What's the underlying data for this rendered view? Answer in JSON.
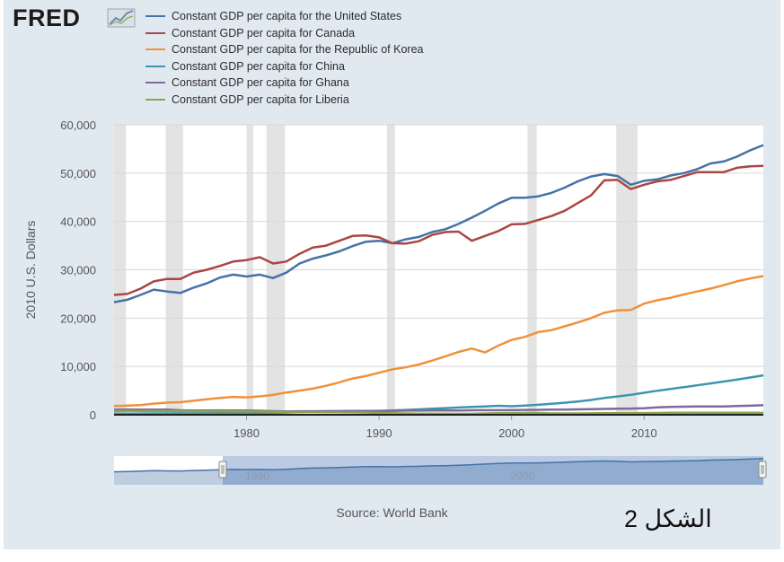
{
  "header": {
    "logo_text": "FRED",
    "logo_icon": "line-chart-icon"
  },
  "source_text": "Source: World Bank",
  "caption": "الشكل 2",
  "colors": {
    "panel_bg": "#e1e9f0",
    "plot_bg": "#ffffff",
    "recession_bar": "#e3e3e3",
    "navigator_fill": "#a3bad9",
    "navigator_line": "#4572a7"
  },
  "chart_data": {
    "type": "line",
    "title": "",
    "xlabel": "",
    "ylabel": "2010 U.S. Dollars",
    "xlim": [
      1970,
      2019
    ],
    "ylim": [
      0,
      60000
    ],
    "x_ticks": [
      "1980",
      "1990",
      "2000",
      "2010"
    ],
    "y_ticks": [
      "0",
      "10,000",
      "20,000",
      "30,000",
      "40,000",
      "50,000",
      "60,000"
    ],
    "grid": true,
    "legend_position": "top",
    "recessions": [
      [
        1970,
        1970.9
      ],
      [
        1973.9,
        1975.2
      ],
      [
        1980.0,
        1980.5
      ],
      [
        1981.5,
        1982.9
      ],
      [
        1990.6,
        1991.2
      ],
      [
        2001.2,
        2001.9
      ],
      [
        2007.9,
        2009.5
      ]
    ],
    "years": [
      1970,
      1971,
      1972,
      1973,
      1974,
      1975,
      1976,
      1977,
      1978,
      1979,
      1980,
      1981,
      1982,
      1983,
      1984,
      1985,
      1986,
      1987,
      1988,
      1989,
      1990,
      1991,
      1992,
      1993,
      1994,
      1995,
      1996,
      1997,
      1998,
      1999,
      2000,
      2001,
      2002,
      2003,
      2004,
      2005,
      2006,
      2007,
      2008,
      2009,
      2010,
      2011,
      2012,
      2013,
      2014,
      2015,
      2016,
      2017,
      2018,
      2019
    ],
    "series": [
      {
        "name": "Constant GDP per capita for the United States",
        "color": "#4572a7",
        "values": [
          23300,
          23800,
          24800,
          25900,
          25500,
          25200,
          26300,
          27200,
          28400,
          29000,
          28600,
          29000,
          28300,
          29400,
          31300,
          32300,
          33000,
          33800,
          34900,
          35800,
          36000,
          35500,
          36300,
          36800,
          37800,
          38400,
          39500,
          40800,
          42200,
          43700,
          44900,
          44900,
          45200,
          45900,
          47000,
          48300,
          49300,
          49800,
          49400,
          47600,
          48400,
          48700,
          49500,
          50000,
          50800,
          52000,
          52400,
          53400,
          54700,
          55800
        ]
      },
      {
        "name": "Constant GDP per capita for Canada",
        "color": "#aa4643",
        "values": [
          24800,
          25000,
          26100,
          27600,
          28100,
          28100,
          29400,
          30000,
          30800,
          31700,
          32000,
          32600,
          31300,
          31700,
          33300,
          34600,
          35000,
          36000,
          37000,
          37100,
          36700,
          35500,
          35400,
          35900,
          37200,
          37800,
          37900,
          36000,
          37000,
          38000,
          39400,
          39500,
          40300,
          41100,
          42200,
          43800,
          45400,
          48500,
          48600,
          46700,
          47600,
          48300,
          48600,
          49400,
          50200,
          50200,
          50200,
          51100,
          51400,
          51500
        ]
      },
      {
        "name": "Constant GDP per capita for the Republic of Korea",
        "color": "#f0913a",
        "values": [
          1800,
          1900,
          2000,
          2300,
          2500,
          2600,
          2900,
          3200,
          3500,
          3700,
          3600,
          3800,
          4100,
          4600,
          5000,
          5400,
          6000,
          6700,
          7500,
          8000,
          8700,
          9400,
          9800,
          10400,
          11200,
          12100,
          13000,
          13700,
          12900,
          14300,
          15500,
          16100,
          17100,
          17500,
          18300,
          19100,
          20000,
          21100,
          21600,
          21700,
          23000,
          23700,
          24200,
          24900,
          25500,
          26100,
          26800,
          27600,
          28200,
          28700
        ]
      },
      {
        "name": "Constant GDP per capita for China",
        "color": "#3d96ae",
        "values": [
          230,
          250,
          260,
          270,
          280,
          290,
          280,
          300,
          330,
          350,
          370,
          390,
          420,
          470,
          540,
          600,
          640,
          700,
          780,
          800,
          820,
          880,
          1000,
          1120,
          1250,
          1380,
          1500,
          1620,
          1730,
          1850,
          1770,
          1910,
          2070,
          2270,
          2480,
          2740,
          3070,
          3470,
          3790,
          4130,
          4560,
          4970,
          5330,
          5710,
          6100,
          6490,
          6870,
          7270,
          7710,
          8150
        ]
      },
      {
        "name": "Constant GDP per capita for Ghana",
        "color": "#80699b",
        "values": [
          1050,
          1100,
          1050,
          1050,
          1070,
          930,
          880,
          880,
          910,
          880,
          870,
          830,
          750,
          700,
          720,
          730,
          740,
          760,
          780,
          800,
          800,
          800,
          850,
          860,
          870,
          880,
          900,
          920,
          940,
          950,
          980,
          1000,
          1020,
          1050,
          1080,
          1110,
          1160,
          1200,
          1270,
          1290,
          1350,
          1520,
          1610,
          1680,
          1700,
          1710,
          1720,
          1820,
          1880,
          1960
        ]
      },
      {
        "name": "Constant GDP per capita for Liberia",
        "color": "#89a54e",
        "values": [
          800,
          820,
          800,
          790,
          780,
          760,
          740,
          730,
          720,
          700,
          690,
          660,
          620,
          590,
          560,
          540,
          520,
          500,
          480,
          450,
          380,
          300,
          280,
          250,
          230,
          210,
          200,
          210,
          280,
          340,
          370,
          380,
          370,
          270,
          270,
          280,
          300,
          320,
          340,
          340,
          350,
          370,
          400,
          420,
          420,
          410,
          400,
          410,
          400,
          390
        ]
      }
    ],
    "navigator": {
      "x_ticks": [
        "1980",
        "2000"
      ]
    }
  }
}
